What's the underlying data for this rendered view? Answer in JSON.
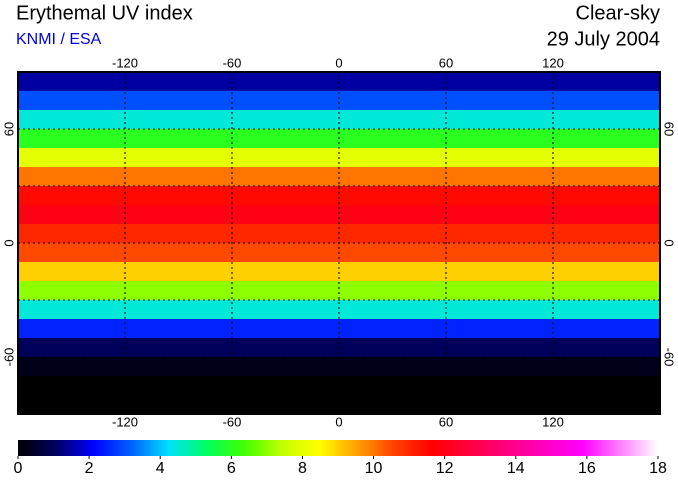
{
  "header": {
    "title": "Erythemal UV index",
    "source": "KNMI / ESA",
    "condition": "Clear-sky",
    "date": "29 July 2004"
  },
  "chart_data": {
    "type": "heatmap-map",
    "xlim": [
      -180,
      180
    ],
    "xticks": [
      -120,
      -60,
      0,
      60,
      120
    ],
    "ylim": [
      -90,
      90
    ],
    "yticks": [
      60,
      0,
      -60
    ],
    "ygrid": [
      60,
      30,
      0,
      -30,
      -60
    ],
    "zonal_mean": {
      "lat": [
        85,
        75,
        65,
        55,
        45,
        35,
        25,
        15,
        5,
        -5,
        -15,
        -25,
        -35,
        -45,
        -55,
        -65,
        -75,
        -85
      ],
      "values": [
        1.5,
        3,
        4.5,
        6,
        8,
        10,
        11.5,
        12,
        11,
        10.5,
        9,
        7,
        4.5,
        2.5,
        1,
        0.3,
        0,
        0
      ]
    },
    "colorbar": {
      "lim": [
        0,
        18
      ],
      "ticks": [
        0,
        2,
        4,
        6,
        8,
        10,
        12,
        14,
        16,
        18
      ],
      "colormap": [
        "#000000",
        "#000060",
        "#0000ff",
        "#0060ff",
        "#00e0ff",
        "#00ff60",
        "#40ff00",
        "#c0ff00",
        "#ffff00",
        "#ffa000",
        "#ff4000",
        "#ff0000",
        "#ff0040",
        "#ff0080",
        "#ff00c0",
        "#ff00ff",
        "#ff80ff",
        "#ffffff"
      ]
    }
  }
}
